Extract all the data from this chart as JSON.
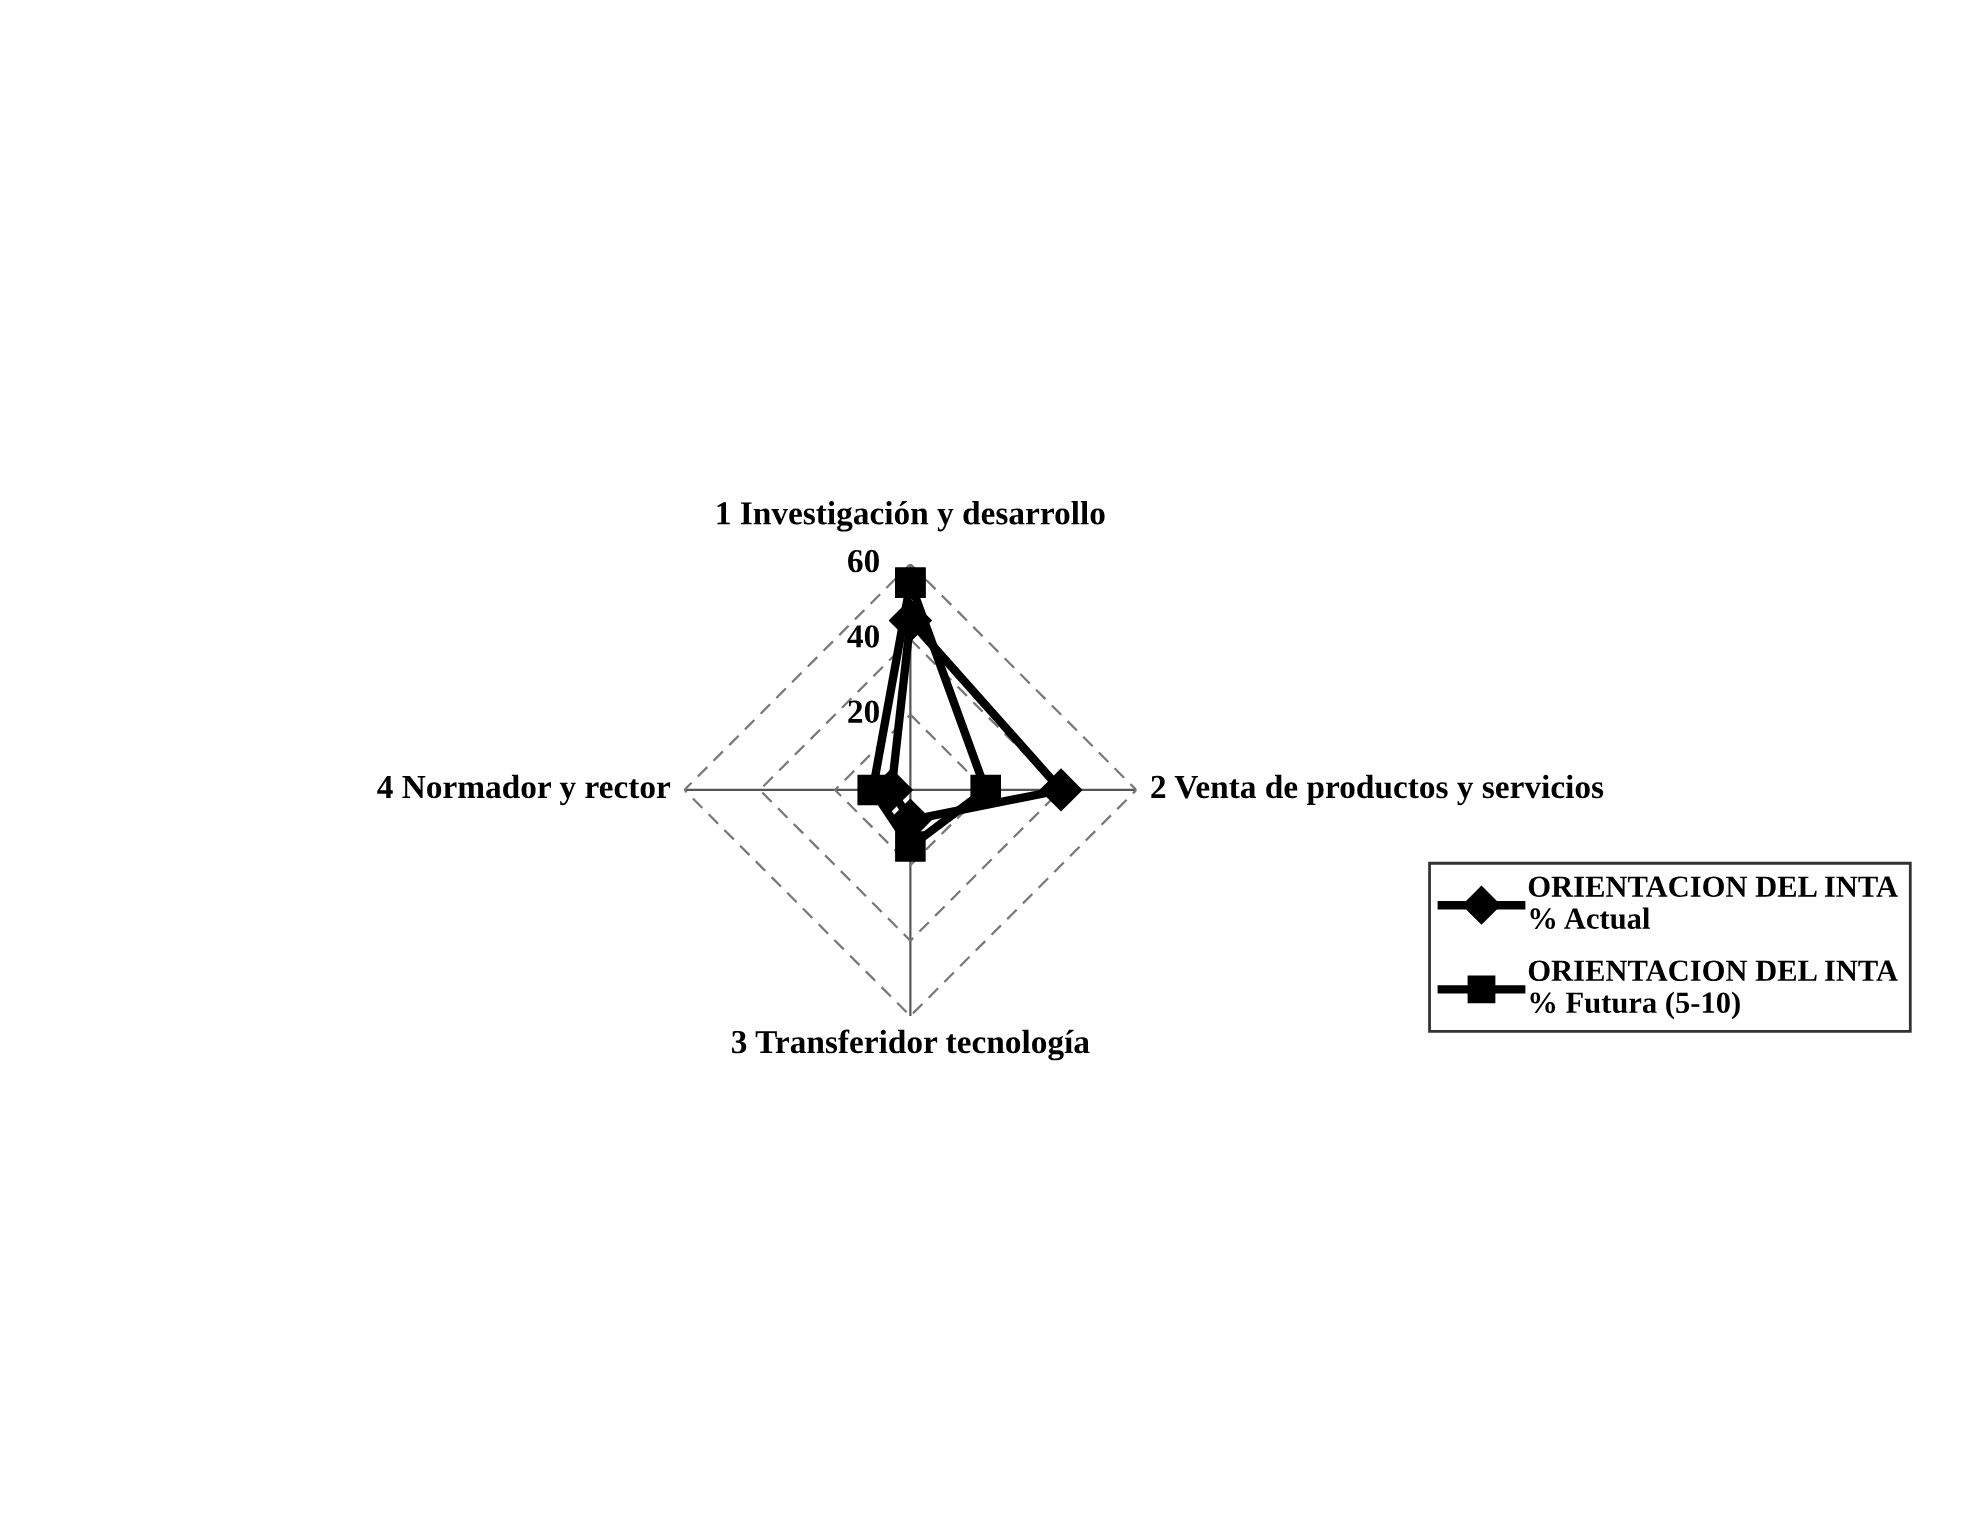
{
  "chart_data": {
    "type": "radar",
    "categories": [
      "1 Investigación y desarrollo",
      "2 Venta de productos y servicios",
      "3 Transferidor tecnología",
      "4 Normador y rector"
    ],
    "ylim": [
      0,
      60
    ],
    "yticks": [
      20,
      40,
      60
    ],
    "grid": true,
    "legend": "right",
    "line_style": "solid",
    "series": [
      {
        "name": "ORIENTACION DEL INTA\n% Actual",
        "color": "#000000",
        "marker": "diamond",
        "values": [
          45,
          40,
          8,
          5
        ]
      },
      {
        "name": "ORIENTACION DEL INTA\n% Futura (5-10)",
        "color": "#000000",
        "marker": "square",
        "values": [
          55,
          20,
          15,
          10
        ]
      }
    ]
  }
}
